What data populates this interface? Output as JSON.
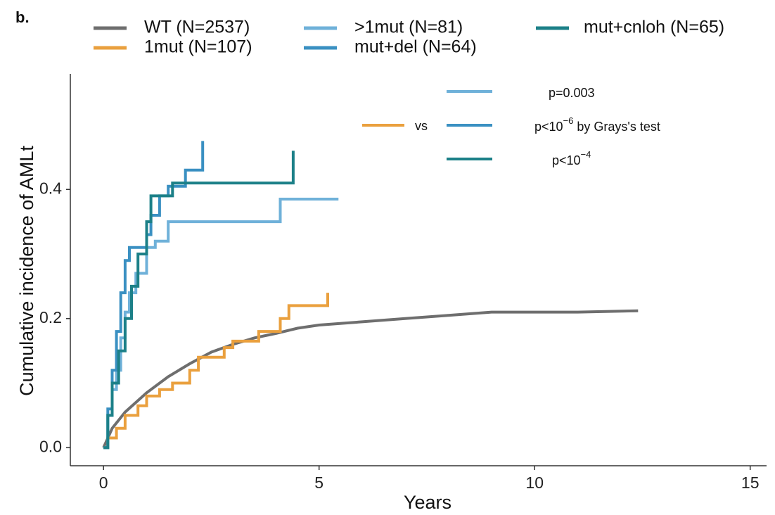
{
  "chart_data": {
    "type": "line",
    "panel_label": "b.",
    "x_label": "Years",
    "y_label": "Cumulative incidence of AMLt",
    "xlim": [
      -0.77,
      15.38
    ],
    "ylim": [
      -0.028,
      0.579
    ],
    "xticks": [
      0,
      5,
      10,
      15
    ],
    "yticks": [
      {
        "value": 0,
        "label": "0.0"
      },
      0.2,
      0.4
    ],
    "series": [
      {
        "name": "WT (N=2537)",
        "color": "#6e6e6e",
        "x": [
          0,
          0.2,
          0.5,
          1,
          1.5,
          2,
          2.5,
          3,
          3.5,
          4,
          4.5,
          5,
          6,
          7,
          8,
          9,
          10,
          11,
          12.4
        ],
        "values": [
          0,
          0.03,
          0.055,
          0.085,
          0.11,
          0.13,
          0.148,
          0.16,
          0.17,
          0.177,
          0.185,
          0.19,
          0.195,
          0.2,
          0.205,
          0.21,
          0.21,
          0.21,
          0.212
        ]
      },
      {
        "name": "1mut (N=107)",
        "color": "#eaa03e",
        "x": [
          0,
          0.1,
          0.1,
          0.3,
          0.3,
          0.5,
          0.5,
          0.8,
          0.8,
          1.0,
          1.0,
          1.3,
          1.3,
          1.6,
          1.6,
          2.0,
          2.0,
          2.2,
          2.2,
          2.8,
          2.8,
          3.0,
          3.0,
          3.6,
          3.6,
          4.1,
          4.1,
          4.3,
          4.3,
          5.2,
          5.2
        ],
        "values": [
          0,
          0,
          0.015,
          0.015,
          0.03,
          0.03,
          0.05,
          0.05,
          0.065,
          0.065,
          0.08,
          0.08,
          0.09,
          0.09,
          0.1,
          0.1,
          0.12,
          0.12,
          0.14,
          0.14,
          0.155,
          0.155,
          0.165,
          0.165,
          0.18,
          0.18,
          0.2,
          0.2,
          0.22,
          0.22,
          0.24
        ]
      },
      {
        "name": ">1mut (N=81)",
        "color": "#6fb1d9",
        "x": [
          0,
          0.1,
          0.1,
          0.2,
          0.2,
          0.3,
          0.3,
          0.4,
          0.4,
          0.5,
          0.5,
          0.6,
          0.6,
          0.75,
          0.75,
          1.0,
          1.0,
          1.2,
          1.2,
          1.5,
          1.5,
          4.1,
          4.1,
          5.45
        ],
        "values": [
          0,
          0,
          0.05,
          0.05,
          0.09,
          0.09,
          0.12,
          0.12,
          0.17,
          0.17,
          0.21,
          0.21,
          0.24,
          0.24,
          0.27,
          0.27,
          0.31,
          0.31,
          0.32,
          0.32,
          0.35,
          0.35,
          0.385,
          0.385
        ]
      },
      {
        "name": "mut+del (N=64)",
        "color": "#3a90c2",
        "x": [
          0,
          0.1,
          0.1,
          0.2,
          0.2,
          0.3,
          0.3,
          0.4,
          0.4,
          0.5,
          0.5,
          0.6,
          0.6,
          1.0,
          1.0,
          1.1,
          1.1,
          1.3,
          1.3,
          1.5,
          1.5,
          1.9,
          1.9,
          2.3,
          2.3
        ],
        "values": [
          0,
          0,
          0.06,
          0.06,
          0.12,
          0.12,
          0.18,
          0.18,
          0.24,
          0.24,
          0.29,
          0.29,
          0.31,
          0.31,
          0.33,
          0.33,
          0.36,
          0.36,
          0.39,
          0.39,
          0.405,
          0.405,
          0.43,
          0.43,
          0.475
        ]
      },
      {
        "name": "mut+cnloh (N=65)",
        "color": "#1c8088",
        "x": [
          0,
          0.1,
          0.1,
          0.2,
          0.2,
          0.35,
          0.35,
          0.5,
          0.5,
          0.65,
          0.65,
          0.8,
          0.8,
          1.0,
          1.0,
          1.1,
          1.1,
          1.6,
          1.6,
          4.4,
          4.4
        ],
        "values": [
          0,
          0,
          0.05,
          0.05,
          0.1,
          0.1,
          0.15,
          0.15,
          0.2,
          0.2,
          0.25,
          0.25,
          0.3,
          0.3,
          0.35,
          0.35,
          0.39,
          0.39,
          0.41,
          0.41,
          0.46
        ]
      }
    ],
    "annotation": {
      "vs": "vs",
      "comparisons": [
        {
          "text": "p=0.003"
        },
        {
          "text": "p<10",
          "sup": "−6",
          "after": " by Grays's test"
        },
        {
          "text": "p<10",
          "sup": "−4"
        }
      ]
    }
  }
}
